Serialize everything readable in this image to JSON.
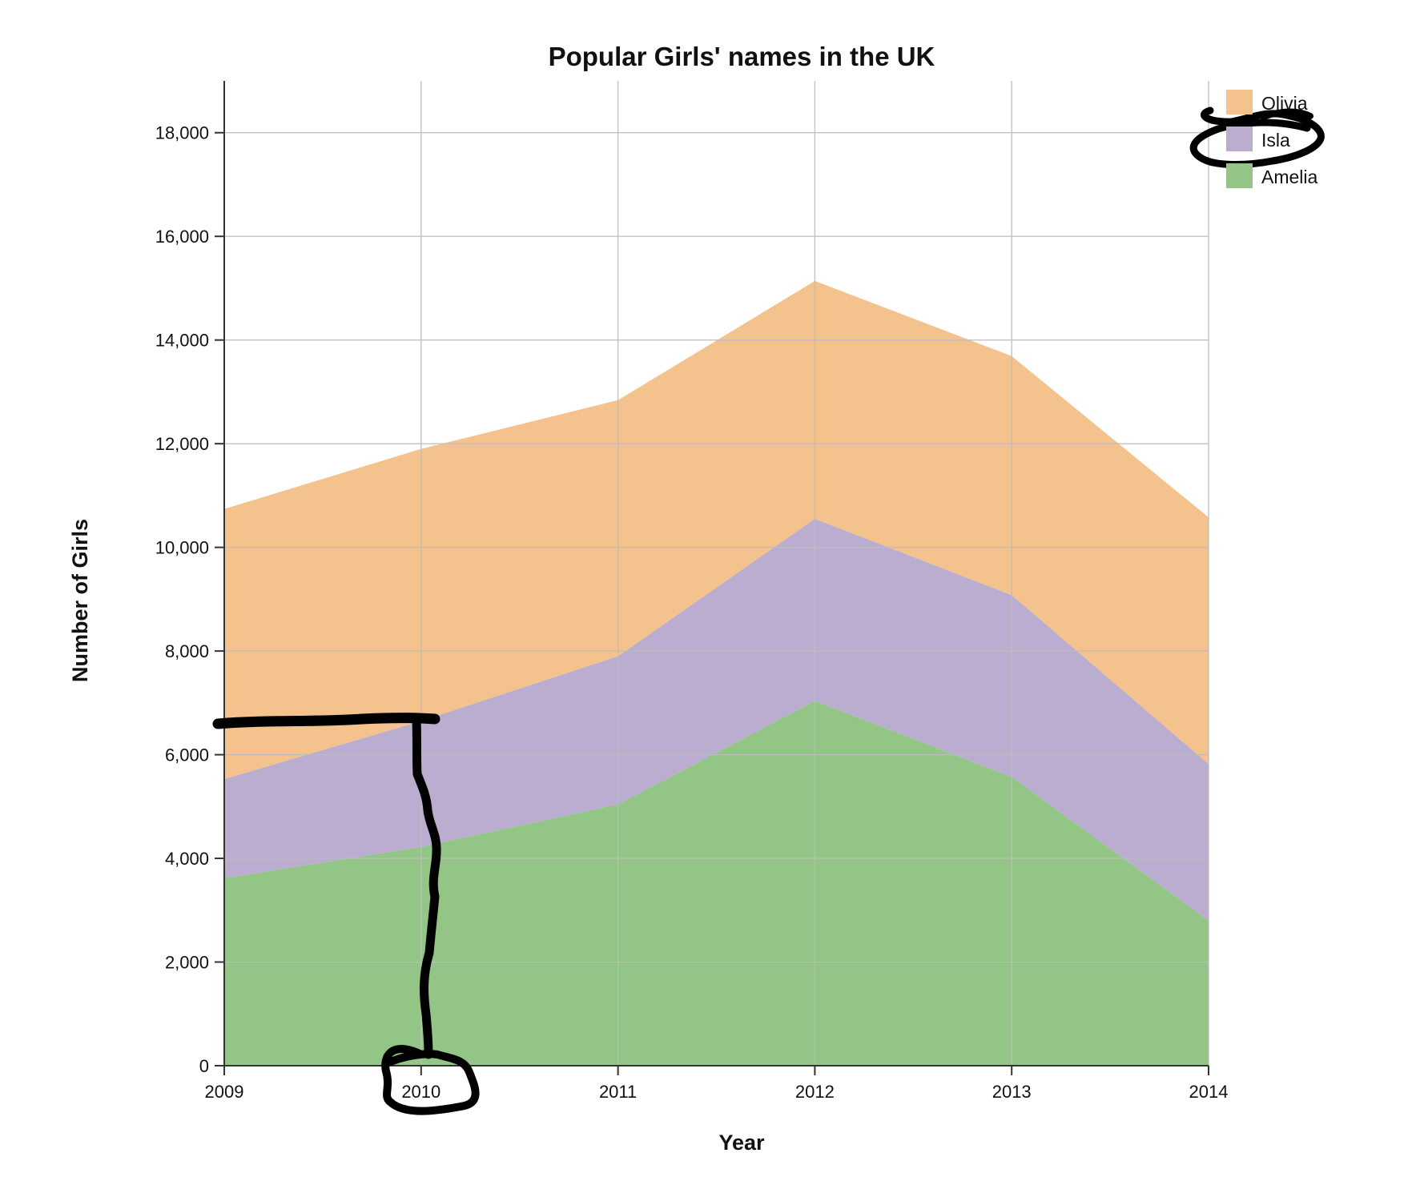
{
  "colors": {
    "Olivia": "#f3c28d",
    "Isla": "#baadcf",
    "Amelia": "#92c586",
    "grid": "#bdbdbd",
    "axis": "#333333",
    "annotation": "#000000"
  },
  "chart_data": {
    "type": "area",
    "stacked": true,
    "title": "Popular Girls' names in the UK",
    "xlabel": "Year",
    "ylabel": "Number of Girls",
    "x": [
      2009,
      2010,
      2011,
      2012,
      2013,
      2014
    ],
    "x_tick_labels": [
      "2009",
      "2010",
      "2011",
      "2012",
      "2013",
      "2014"
    ],
    "ylim": [
      0,
      19000
    ],
    "y_ticks": [
      0,
      2000,
      4000,
      6000,
      8000,
      10000,
      12000,
      14000,
      16000,
      18000
    ],
    "y_tick_labels": [
      "0",
      "2,000",
      "4,000",
      "6,000",
      "8,000",
      "10,000",
      "12,000",
      "14,000",
      "16,000",
      "18,000"
    ],
    "grid": true,
    "legend_position": "top-right",
    "series": [
      {
        "name": "Amelia",
        "values": [
          3620,
          4220,
          5040,
          7040,
          5570,
          2800
        ]
      },
      {
        "name": "Isla",
        "values": [
          1910,
          2430,
          2860,
          3510,
          3510,
          3020
        ]
      },
      {
        "name": "Olivia",
        "values": [
          5210,
          5250,
          4940,
          4590,
          4610,
          4760
        ]
      }
    ],
    "legend_order": [
      "Olivia",
      "Isla",
      "Amelia"
    ],
    "annotations": [
      "hand-drawn line from about 6,700 on the y-axis to 2010 on the x-axis",
      "hand-drawn circle around the 2010 tick label",
      "hand-drawn circle around the Isla legend entry"
    ]
  }
}
